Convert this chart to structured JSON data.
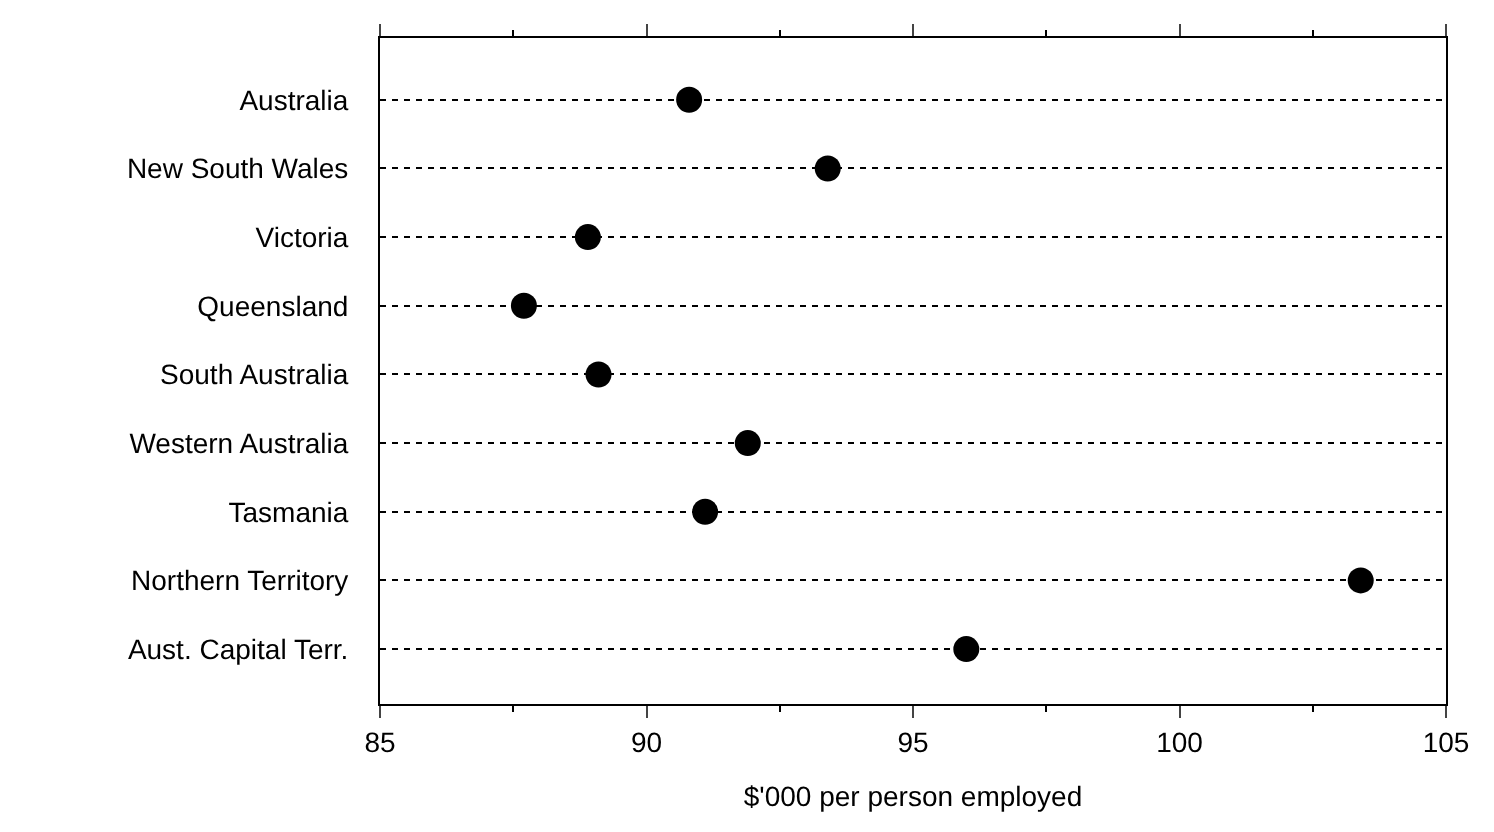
{
  "chart_data": {
    "type": "scatter",
    "orientation": "horizontal",
    "xlabel": "$'000 per person employed",
    "categories": [
      "Australia",
      "New South Wales",
      "Victoria",
      "Queensland",
      "South Australia",
      "Western Australia",
      "Tasmania",
      "Northern Territory",
      "Aust. Capital Terr."
    ],
    "series": [
      {
        "color": "#000000",
        "values": [
          90.8,
          93.4,
          88.9,
          87.7,
          89.1,
          91.9,
          91.1,
          103.4,
          96.0
        ]
      }
    ],
    "xlim": [
      85,
      105
    ],
    "xticks": [
      85,
      90,
      95,
      100,
      105
    ],
    "grid": "y",
    "line_style": "dotted",
    "marker": "circle"
  }
}
